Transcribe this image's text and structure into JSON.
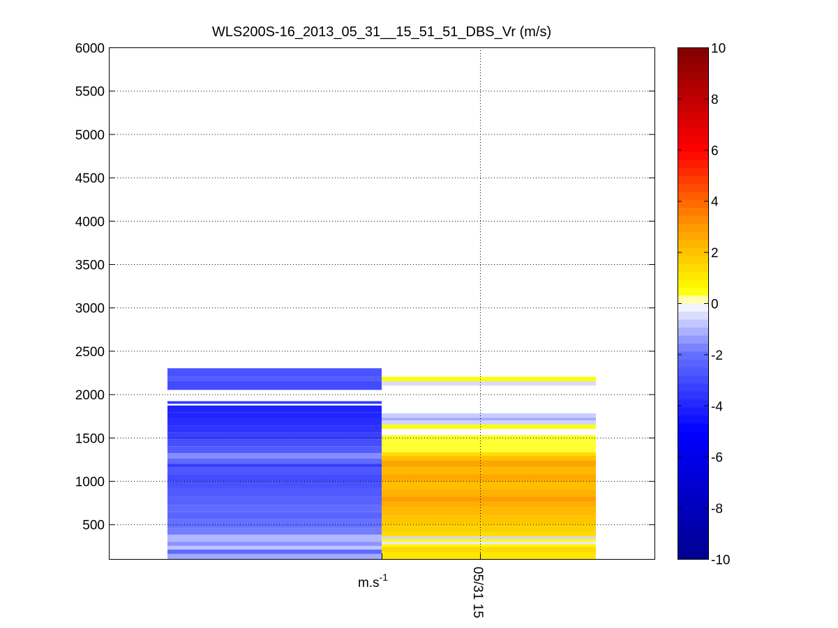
{
  "chart_data": {
    "type": "heatmap",
    "title": "WLS200S-16_2013_05_31__15_51_51_DBS_Vr (m/s)",
    "ylim": [
      100,
      6000
    ],
    "yticks": [
      500,
      1000,
      1500,
      2000,
      2500,
      3000,
      3500,
      4000,
      4500,
      5000,
      5500,
      6000
    ],
    "xtick_labels": [
      "m.s",
      "05/31 15"
    ],
    "xtick_superscript": "-1",
    "grid": true,
    "colorbar": {
      "limits": [
        -10,
        10
      ],
      "ticks": [
        10,
        8,
        6,
        4,
        2,
        0,
        -2,
        -4,
        -6,
        -8,
        -10
      ],
      "colormap": "blue-white-yellow-red",
      "colors": {
        "minus10": "#00008f",
        "minus5": "#0000ff",
        "minus2": "#6470ff",
        "zero": "#ffffff",
        "plus1": "#ffff00",
        "plus3": "#ff9900",
        "plus6": "#ff0000",
        "plus10": "#800000"
      }
    },
    "columns": [
      {
        "name": "left",
        "segments": [
          {
            "from": 100,
            "to": 160,
            "v": -1.2
          },
          {
            "from": 160,
            "to": 210,
            "v": -2.2
          },
          {
            "from": 210,
            "to": 250,
            "v": -0.8
          },
          {
            "from": 250,
            "to": 300,
            "v": -1.5
          },
          {
            "from": 300,
            "to": 380,
            "v": -1.0
          },
          {
            "from": 380,
            "to": 460,
            "v": -1.8
          },
          {
            "from": 460,
            "to": 560,
            "v": -2.0
          },
          {
            "from": 560,
            "to": 640,
            "v": -2.3
          },
          {
            "from": 640,
            "to": 720,
            "v": -2.1
          },
          {
            "from": 720,
            "to": 820,
            "v": -2.4
          },
          {
            "from": 820,
            "to": 920,
            "v": -2.6
          },
          {
            "from": 920,
            "to": 1000,
            "v": -2.8
          },
          {
            "from": 1000,
            "to": 1080,
            "v": -3.0
          },
          {
            "from": 1080,
            "to": 1160,
            "v": -2.7
          },
          {
            "from": 1160,
            "to": 1200,
            "v": -3.4
          },
          {
            "from": 1200,
            "to": 1260,
            "v": -2.2
          },
          {
            "from": 1260,
            "to": 1320,
            "v": -1.6
          },
          {
            "from": 1320,
            "to": 1400,
            "v": -2.5
          },
          {
            "from": 1400,
            "to": 1480,
            "v": -2.9
          },
          {
            "from": 1480,
            "to": 1560,
            "v": -3.3
          },
          {
            "from": 1560,
            "to": 1640,
            "v": -3.6
          },
          {
            "from": 1640,
            "to": 1720,
            "v": -3.8
          },
          {
            "from": 1720,
            "to": 1790,
            "v": -4.0
          },
          {
            "from": 1790,
            "to": 1870,
            "v": -4.1
          },
          {
            "from": 1890,
            "to": 1920,
            "v": -3.5
          },
          {
            "from": 2050,
            "to": 2150,
            "v": -3.0
          },
          {
            "from": 2150,
            "to": 2200,
            "v": -2.5
          },
          {
            "from": 2200,
            "to": 2300,
            "v": -2.8
          }
        ]
      },
      {
        "name": "right",
        "segments": [
          {
            "from": 100,
            "to": 180,
            "v": 1.1
          },
          {
            "from": 180,
            "to": 240,
            "v": 1.4
          },
          {
            "from": 240,
            "to": 270,
            "v": 0.7
          },
          {
            "from": 270,
            "to": 300,
            "v": -0.3
          },
          {
            "from": 300,
            "to": 330,
            "v": 0.6
          },
          {
            "from": 330,
            "to": 360,
            "v": -0.6
          },
          {
            "from": 360,
            "to": 400,
            "v": 1.3
          },
          {
            "from": 400,
            "to": 500,
            "v": 1.6
          },
          {
            "from": 500,
            "to": 600,
            "v": 1.9
          },
          {
            "from": 600,
            "to": 700,
            "v": 2.2
          },
          {
            "from": 700,
            "to": 760,
            "v": 2.5
          },
          {
            "from": 760,
            "to": 820,
            "v": 2.9
          },
          {
            "from": 820,
            "to": 900,
            "v": 2.4
          },
          {
            "from": 900,
            "to": 1000,
            "v": 2.1
          },
          {
            "from": 1000,
            "to": 1080,
            "v": 2.6
          },
          {
            "from": 1080,
            "to": 1160,
            "v": 2.2
          },
          {
            "from": 1160,
            "to": 1240,
            "v": 2.7
          },
          {
            "from": 1240,
            "to": 1290,
            "v": 2.0
          },
          {
            "from": 1290,
            "to": 1330,
            "v": 1.3
          },
          {
            "from": 1330,
            "to": 1530,
            "v": 0.4
          },
          {
            "from": 1600,
            "to": 1650,
            "v": 0.5
          },
          {
            "from": 1650,
            "to": 1700,
            "v": -0.6
          },
          {
            "from": 1700,
            "to": 1730,
            "v": -1.2
          },
          {
            "from": 1730,
            "to": 1780,
            "v": -0.7
          },
          {
            "from": 2100,
            "to": 2150,
            "v": -0.5
          },
          {
            "from": 2150,
            "to": 2200,
            "v": 0.5
          }
        ]
      }
    ]
  }
}
